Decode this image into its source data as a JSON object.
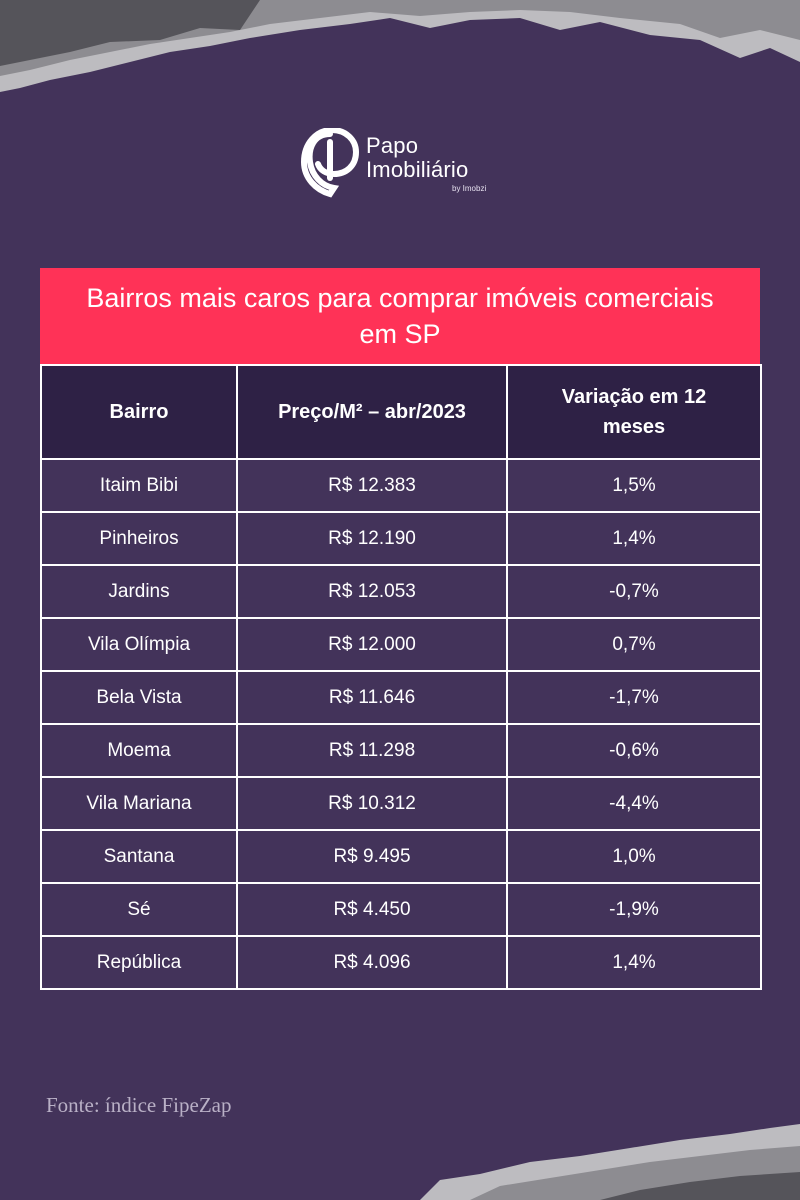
{
  "logo": {
    "line1": "Papo",
    "line2": "Imobiliário",
    "byline": "by Imobzi"
  },
  "title": "Bairros mais caros para comprar imóveis comerciais em SP",
  "table": {
    "headers": [
      "Bairro",
      "Preço/M² – abr/2023",
      "Variação em 12 meses"
    ],
    "rows": [
      [
        "Itaim Bibi",
        "R$ 12.383",
        "1,5%"
      ],
      [
        "Pinheiros",
        "R$ 12.190",
        "1,4%"
      ],
      [
        "Jardins",
        "R$ 12.053",
        "-0,7%"
      ],
      [
        "Vila Olímpia",
        "R$ 12.000",
        "0,7%"
      ],
      [
        "Bela Vista",
        "R$ 11.646",
        "-1,7%"
      ],
      [
        "Moema",
        "R$ 11.298",
        "-0,6%"
      ],
      [
        "Vila Mariana",
        "R$ 10.312",
        "-4,4%"
      ],
      [
        "Santana",
        "R$ 9.495",
        "1,0%"
      ],
      [
        "Sé",
        "R$ 4.450",
        "-1,9%"
      ],
      [
        "República",
        "R$ 4.096",
        "1,4%"
      ]
    ]
  },
  "source": "Fonte: índice FipeZap",
  "colors": {
    "background": "#43335a",
    "header_row": "#2e2145",
    "title_bar": "#ff3257",
    "text": "#ffffff"
  }
}
